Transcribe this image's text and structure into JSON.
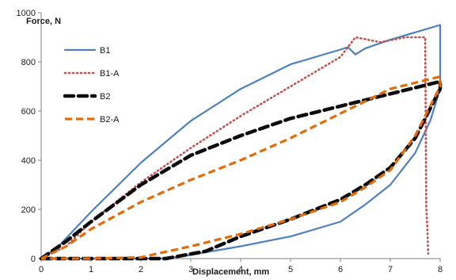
{
  "chart_data": {
    "type": "line",
    "title": "",
    "xlabel": "Displacement, mm",
    "ylabel": "Force, N",
    "xlim": [
      0,
      8
    ],
    "ylim": [
      0,
      1000
    ],
    "xticks": [
      0,
      1,
      2,
      3,
      4,
      5,
      6,
      7,
      8
    ],
    "yticks": [
      0,
      200,
      400,
      600,
      800,
      1000
    ],
    "grid": false,
    "legend_position": "top-left",
    "series": [
      {
        "name": "B1",
        "color": "#4f81bd",
        "style": "solid",
        "x": [
          0,
          0.3,
          1,
          2,
          3,
          4,
          5,
          6,
          6.15,
          6.3,
          6.5,
          7,
          7.5,
          8,
          8,
          7.8,
          7.5,
          7,
          6.5,
          6,
          5,
          4,
          3,
          2.5,
          2,
          1,
          0
        ],
        "y": [
          0,
          40,
          190,
          390,
          560,
          690,
          790,
          850,
          860,
          830,
          855,
          890,
          920,
          950,
          690,
          560,
          430,
          300,
          220,
          150,
          90,
          50,
          15,
          0,
          0,
          0,
          0
        ]
      },
      {
        "name": "B1-A",
        "color": "#c0504d",
        "style": "dotted",
        "x": [
          0,
          0.5,
          1,
          2,
          3,
          4,
          5,
          6,
          6.3,
          6.8,
          7.3,
          7.7,
          7.72,
          7.74,
          7.76
        ],
        "y": [
          0,
          50,
          150,
          310,
          450,
          580,
          700,
          820,
          900,
          880,
          900,
          900,
          210,
          140,
          20
        ]
      },
      {
        "name": "B2",
        "color": "#0d0d0d",
        "style": "long-dash",
        "x": [
          0,
          0.5,
          1,
          2,
          3,
          4,
          5,
          6,
          7,
          8,
          8,
          7.5,
          7,
          6.5,
          6,
          5,
          4,
          3.3,
          2.5,
          2,
          1,
          0
        ],
        "y": [
          0,
          70,
          150,
          300,
          420,
          500,
          570,
          620,
          670,
          720,
          690,
          490,
          370,
          300,
          240,
          160,
          90,
          30,
          0,
          0,
          0,
          0
        ]
      },
      {
        "name": "B2-A",
        "color": "#e36c09",
        "style": "dashed",
        "x": [
          0,
          0.5,
          1,
          2,
          3,
          4,
          5,
          6,
          7,
          8,
          8,
          7.5,
          7,
          6.5,
          6,
          5,
          4,
          3,
          2,
          1,
          0
        ],
        "y": [
          0,
          50,
          120,
          230,
          320,
          400,
          490,
          590,
          690,
          740,
          700,
          500,
          360,
          290,
          230,
          160,
          100,
          50,
          5,
          0,
          0
        ]
      }
    ]
  }
}
